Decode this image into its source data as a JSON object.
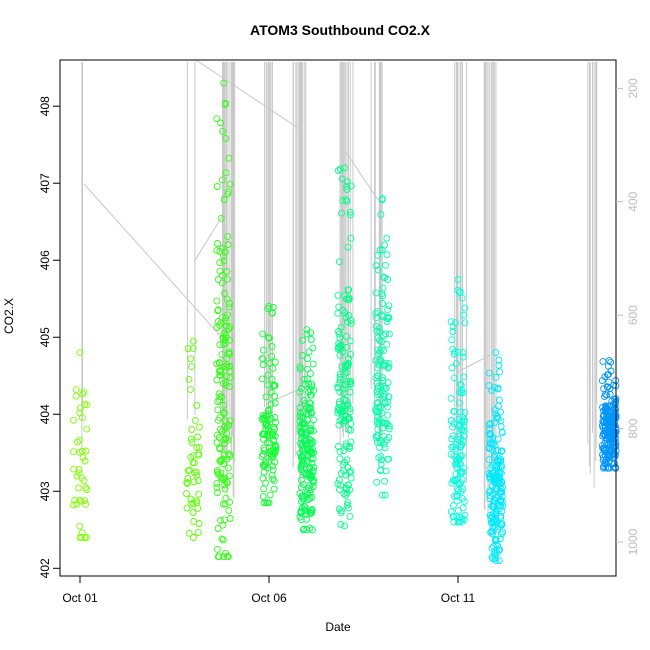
{
  "chart_data": {
    "type": "scatter",
    "title": "ATOM3 Southbound CO2.X",
    "xlabel": "Date",
    "ylabel": "CO2.X",
    "x_ticks": [
      "Oct 01",
      "Oct 06",
      "Oct 11"
    ],
    "y_ticks": [
      402,
      403,
      404,
      405,
      406,
      407,
      408
    ],
    "y_range": [
      401.9,
      408.6
    ],
    "right_axis_ticks": [
      200,
      400,
      600,
      800,
      1000
    ],
    "right_axis_range": [
      150,
      1060
    ],
    "x_range_days": [
      "2016-10-01",
      "2016-10-15"
    ],
    "marker": "open-circle",
    "grid": false,
    "colors": {
      "point_gradient_start": "#7fff00",
      "point_gradient_end": "#0090ff",
      "overlay_line": "#c8c8c8"
    },
    "clusters": [
      {
        "date": "2016-10-01",
        "ymin": 402.4,
        "ymax": 404.8,
        "n": 40,
        "color": "#80ff00"
      },
      {
        "date": "2016-10-04",
        "ymin": 402.4,
        "ymax": 404.95,
        "n": 45,
        "color": "#5cff00"
      },
      {
        "date": "2016-10-04.8",
        "ymin": 402.15,
        "ymax": 408.3,
        "n": 160,
        "color": "#30ff10"
      },
      {
        "date": "2016-10-06",
        "ymin": 402.85,
        "ymax": 405.4,
        "n": 110,
        "color": "#10ff30"
      },
      {
        "date": "2016-10-07",
        "ymin": 402.5,
        "ymax": 405.1,
        "n": 170,
        "color": "#00ff50"
      },
      {
        "date": "2016-10-08",
        "ymin": 402.55,
        "ymax": 407.2,
        "n": 150,
        "color": "#00ff88"
      },
      {
        "date": "2016-10-09",
        "ymin": 402.95,
        "ymax": 406.8,
        "n": 130,
        "color": "#00ffaa"
      },
      {
        "date": "2016-10-11",
        "ymin": 402.6,
        "ymax": 405.75,
        "n": 120,
        "color": "#00ffe0"
      },
      {
        "date": "2016-10-12",
        "ymin": 402.1,
        "ymax": 404.8,
        "n": 180,
        "color": "#00e8ff"
      },
      {
        "date": "2016-10-15",
        "ymin": 403.3,
        "ymax": 404.7,
        "n": 200,
        "color": "#0095ff"
      }
    ]
  }
}
